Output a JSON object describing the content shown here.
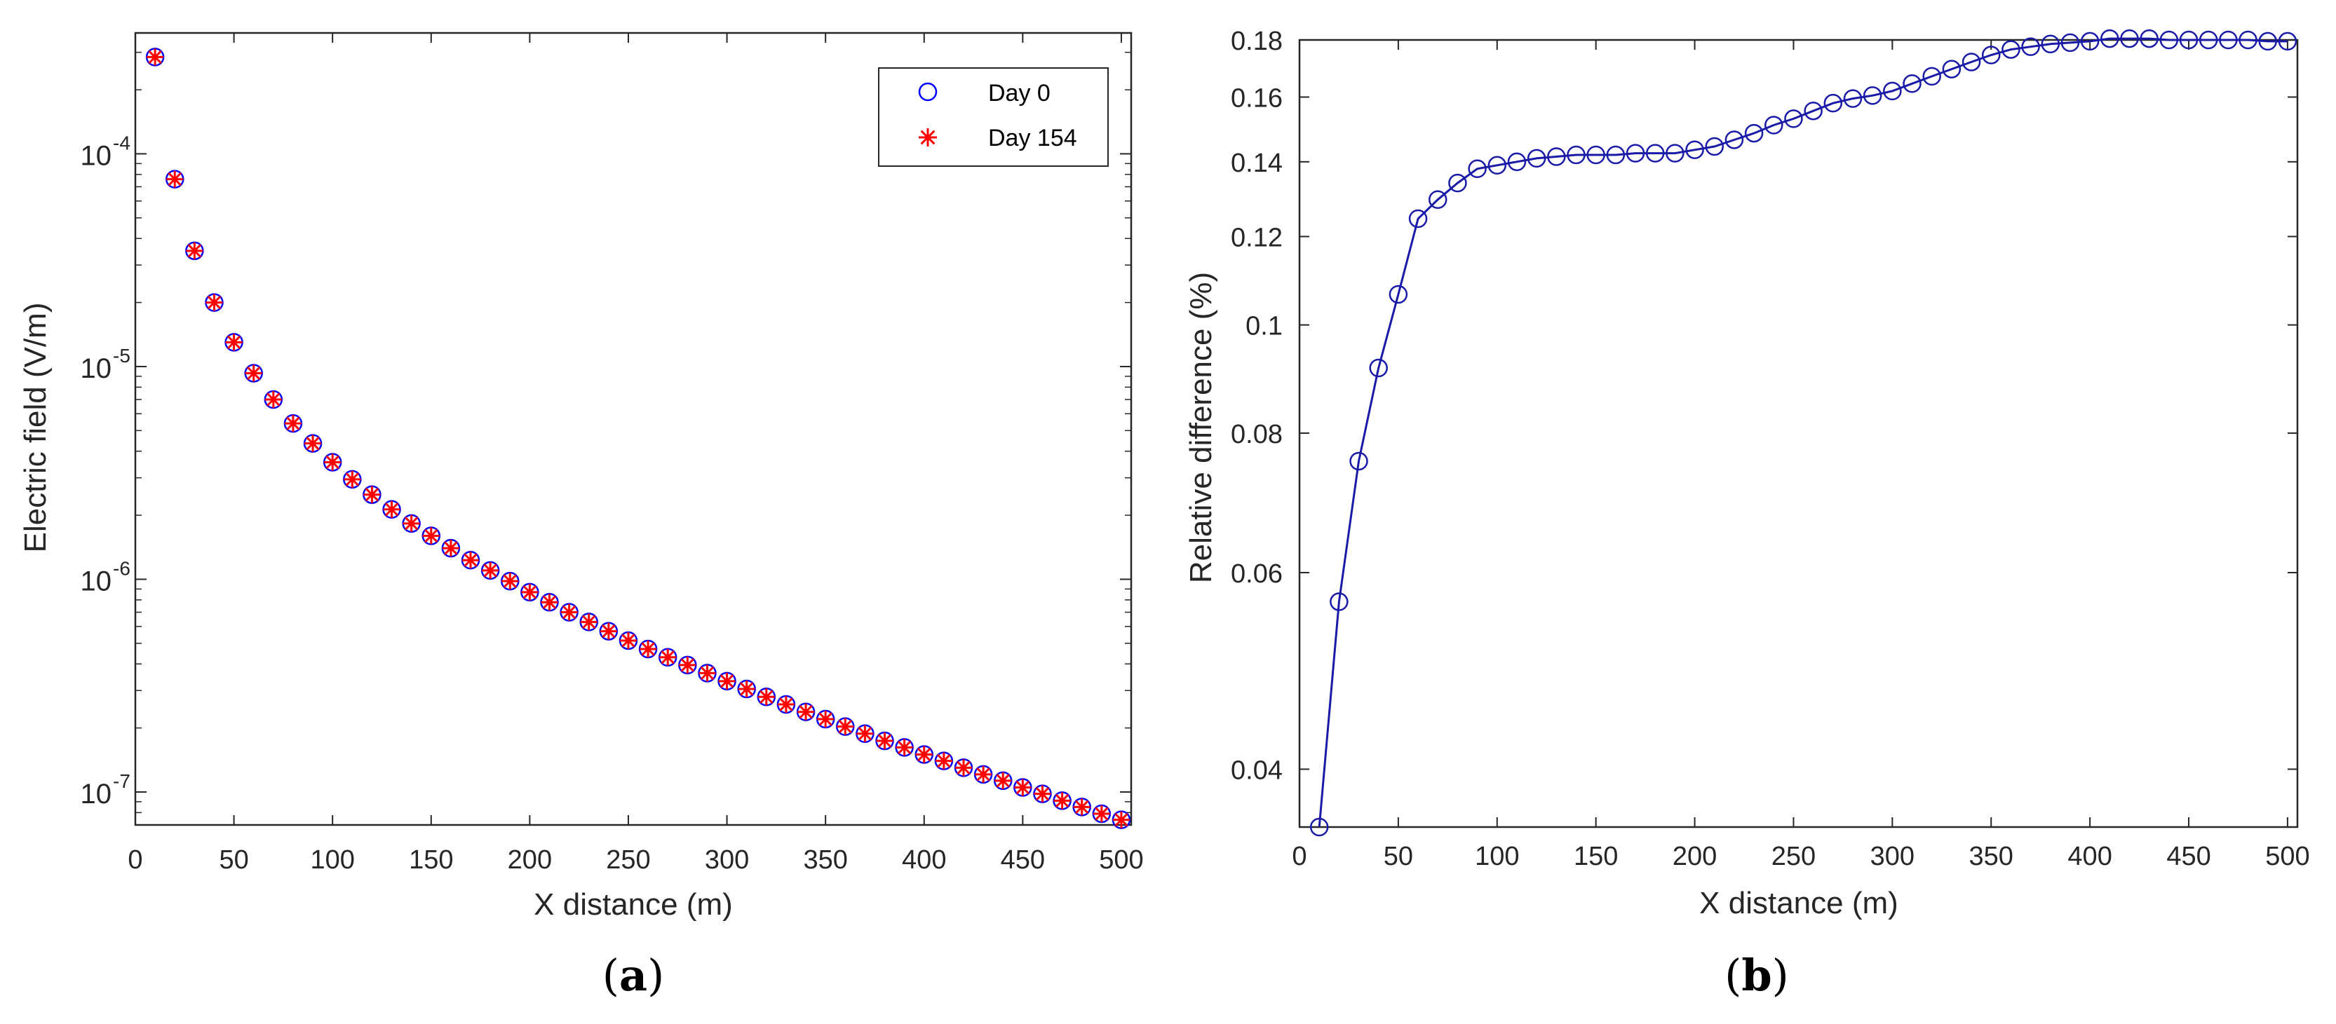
{
  "chart_data": [
    {
      "type": "scatter",
      "yscale": "log",
      "xlabel": "X distance (m)",
      "ylabel": "Electric field (V/m)",
      "xlim": [
        0,
        505
      ],
      "ylim": [
        7e-08,
        0.00037
      ],
      "grid": false,
      "legend": "top-right",
      "xticks": [
        "0",
        "50",
        "100",
        "150",
        "200",
        "250",
        "300",
        "350",
        "400",
        "450",
        "500"
      ],
      "yticks": [
        {
          "base": "10",
          "exp": "-7",
          "value": 1e-07
        },
        {
          "base": "10",
          "exp": "-6",
          "value": 1e-06
        },
        {
          "base": "10",
          "exp": "-5",
          "value": 1e-05
        },
        {
          "base": "10",
          "exp": "-4",
          "value": 0.0001
        }
      ],
      "x": [
        10,
        20,
        30,
        40,
        50,
        60,
        70,
        80,
        90,
        100,
        110,
        120,
        130,
        140,
        150,
        160,
        170,
        180,
        190,
        200,
        210,
        220,
        230,
        240,
        250,
        260,
        270,
        280,
        290,
        300,
        310,
        320,
        330,
        340,
        350,
        360,
        370,
        380,
        390,
        400,
        410,
        420,
        430,
        440,
        450,
        460,
        470,
        480,
        490,
        500
      ],
      "series": [
        {
          "name": "Day 0",
          "marker": "circle",
          "color": "#0000ff",
          "values": [
            0.000285,
            7.6e-05,
            3.5e-05,
            2e-05,
            1.3e-05,
            9.3e-06,
            7e-06,
            5.4e-06,
            4.35e-06,
            3.55e-06,
            2.95e-06,
            2.5e-06,
            2.13e-06,
            1.83e-06,
            1.6e-06,
            1.4e-06,
            1.23e-06,
            1.1e-06,
            9.8e-07,
            8.7e-07,
            7.8e-07,
            7e-07,
            6.3e-07,
            5.7e-07,
            5.15e-07,
            4.7e-07,
            4.3e-07,
            3.95e-07,
            3.62e-07,
            3.32e-07,
            3.05e-07,
            2.8e-07,
            2.58e-07,
            2.38e-07,
            2.2e-07,
            2.03e-07,
            1.88e-07,
            1.74e-07,
            1.62e-07,
            1.5e-07,
            1.4e-07,
            1.3e-07,
            1.21e-07,
            1.13e-07,
            1.05e-07,
            9.8e-08,
            9.1e-08,
            8.5e-08,
            7.9e-08,
            7.4e-08
          ]
        },
        {
          "name": "Day 154",
          "marker": "asterisk",
          "color": "#ff0000",
          "values": [
            0.000285,
            7.6e-05,
            3.5e-05,
            2e-05,
            1.3e-05,
            9.3e-06,
            7e-06,
            5.4e-06,
            4.35e-06,
            3.55e-06,
            2.95e-06,
            2.5e-06,
            2.13e-06,
            1.83e-06,
            1.6e-06,
            1.4e-06,
            1.23e-06,
            1.1e-06,
            9.8e-07,
            8.7e-07,
            7.8e-07,
            7e-07,
            6.3e-07,
            5.7e-07,
            5.15e-07,
            4.7e-07,
            4.3e-07,
            3.95e-07,
            3.62e-07,
            3.32e-07,
            3.05e-07,
            2.8e-07,
            2.58e-07,
            2.38e-07,
            2.2e-07,
            2.03e-07,
            1.88e-07,
            1.74e-07,
            1.62e-07,
            1.5e-07,
            1.4e-07,
            1.3e-07,
            1.21e-07,
            1.13e-07,
            1.05e-07,
            9.8e-08,
            9.1e-08,
            8.5e-08,
            7.9e-08,
            7.4e-08
          ]
        }
      ]
    },
    {
      "type": "line",
      "yscale": "log",
      "xlabel": "X distance (m)",
      "ylabel": "Relative difference (%)",
      "xlim": [
        0,
        505
      ],
      "ylim": [
        0.0355,
        0.18
      ],
      "grid": false,
      "xticks": [
        "0",
        "50",
        "100",
        "150",
        "200",
        "250",
        "300",
        "350",
        "400",
        "450",
        "500"
      ],
      "yticks": [
        {
          "label": "0.04",
          "value": 0.04
        },
        {
          "label": "0.06",
          "value": 0.06
        },
        {
          "label": "0.08",
          "value": 0.08
        },
        {
          "label": "0.1",
          "value": 0.1
        },
        {
          "label": "0.12",
          "value": 0.12
        },
        {
          "label": "0.14",
          "value": 0.14
        },
        {
          "label": "0.16",
          "value": 0.16
        },
        {
          "label": "0.18",
          "value": 0.18
        }
      ],
      "x": [
        10,
        20,
        30,
        40,
        50,
        60,
        70,
        80,
        90,
        100,
        110,
        120,
        130,
        140,
        150,
        160,
        170,
        180,
        190,
        200,
        210,
        220,
        230,
        240,
        250,
        260,
        270,
        280,
        290,
        300,
        310,
        320,
        330,
        340,
        350,
        360,
        370,
        380,
        390,
        400,
        410,
        420,
        430,
        440,
        450,
        460,
        470,
        480,
        490,
        500
      ],
      "series": [
        {
          "marker": "circle",
          "color": "#1a1aa8",
          "values": [
            0.0355,
            0.0565,
            0.0755,
            0.0915,
            0.1065,
            0.1245,
            0.1295,
            0.134,
            0.138,
            0.139,
            0.14,
            0.141,
            0.1415,
            0.142,
            0.142,
            0.142,
            0.1425,
            0.1425,
            0.1425,
            0.1435,
            0.1445,
            0.1465,
            0.1485,
            0.151,
            0.153,
            0.1555,
            0.158,
            0.1595,
            0.1605,
            0.162,
            0.1645,
            0.167,
            0.1695,
            0.172,
            0.1745,
            0.1765,
            0.1775,
            0.1785,
            0.179,
            0.1795,
            0.1805,
            0.1805,
            0.1805,
            0.18,
            0.18,
            0.18,
            0.18,
            0.18,
            0.1795,
            0.1795
          ]
        }
      ]
    }
  ],
  "captions": {
    "a": "a",
    "b": "b"
  }
}
